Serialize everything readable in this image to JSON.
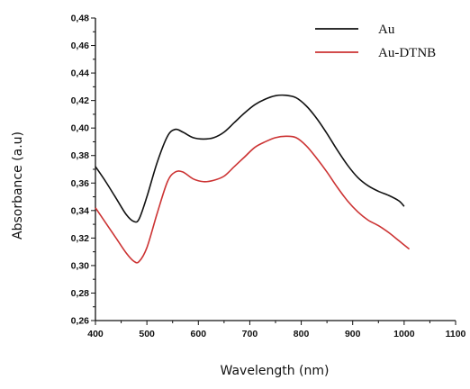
{
  "chart_data": {
    "type": "line",
    "title": "",
    "xlabel": "Wavelength (nm)",
    "ylabel": "Absorbance (a.u)",
    "xlim": [
      400,
      1100
    ],
    "ylim": [
      0.26,
      0.48
    ],
    "x_ticks": [
      400,
      500,
      600,
      700,
      800,
      900,
      1000,
      1100
    ],
    "x_tick_labels": [
      "400",
      "500",
      "600",
      "700",
      "800",
      "900",
      "1000",
      "1100"
    ],
    "y_ticks": [
      0.26,
      0.28,
      0.3,
      0.32,
      0.34,
      0.36,
      0.38,
      0.4,
      0.42,
      0.44,
      0.46,
      0.48
    ],
    "y_tick_labels": [
      "0,26",
      "0,28",
      "0,30",
      "0,32",
      "0,34",
      "0,36",
      "0,38",
      "0,40",
      "0,42",
      "0,44",
      "0,46",
      "0,48"
    ],
    "grid": false,
    "legend_position": "top-right",
    "series": [
      {
        "name": "Au",
        "color": "#111111",
        "points": [
          [
            400,
            0.372
          ],
          [
            420,
            0.361
          ],
          [
            440,
            0.349
          ],
          [
            460,
            0.337
          ],
          [
            475,
            0.332
          ],
          [
            485,
            0.334
          ],
          [
            500,
            0.35
          ],
          [
            520,
            0.375
          ],
          [
            540,
            0.394
          ],
          [
            555,
            0.399
          ],
          [
            570,
            0.397
          ],
          [
            590,
            0.393
          ],
          [
            610,
            0.392
          ],
          [
            630,
            0.393
          ],
          [
            650,
            0.397
          ],
          [
            670,
            0.404
          ],
          [
            690,
            0.411
          ],
          [
            710,
            0.417
          ],
          [
            730,
            0.421
          ],
          [
            750,
            0.4235
          ],
          [
            770,
            0.4238
          ],
          [
            790,
            0.422
          ],
          [
            810,
            0.416
          ],
          [
            830,
            0.407
          ],
          [
            850,
            0.396
          ],
          [
            870,
            0.384
          ],
          [
            890,
            0.373
          ],
          [
            910,
            0.364
          ],
          [
            930,
            0.358
          ],
          [
            950,
            0.354
          ],
          [
            970,
            0.351
          ],
          [
            990,
            0.347
          ],
          [
            1000,
            0.343
          ]
        ]
      },
      {
        "name": "Au-DTNB",
        "color": "#cc3333",
        "points": [
          [
            400,
            0.342
          ],
          [
            420,
            0.331
          ],
          [
            440,
            0.32
          ],
          [
            460,
            0.309
          ],
          [
            475,
            0.303
          ],
          [
            485,
            0.303
          ],
          [
            500,
            0.313
          ],
          [
            520,
            0.338
          ],
          [
            540,
            0.361
          ],
          [
            555,
            0.368
          ],
          [
            570,
            0.368
          ],
          [
            590,
            0.363
          ],
          [
            610,
            0.361
          ],
          [
            630,
            0.362
          ],
          [
            650,
            0.365
          ],
          [
            670,
            0.372
          ],
          [
            690,
            0.379
          ],
          [
            710,
            0.386
          ],
          [
            730,
            0.39
          ],
          [
            750,
            0.393
          ],
          [
            770,
            0.394
          ],
          [
            790,
            0.393
          ],
          [
            810,
            0.387
          ],
          [
            830,
            0.378
          ],
          [
            850,
            0.368
          ],
          [
            870,
            0.357
          ],
          [
            890,
            0.347
          ],
          [
            910,
            0.339
          ],
          [
            930,
            0.333
          ],
          [
            950,
            0.329
          ],
          [
            970,
            0.324
          ],
          [
            990,
            0.318
          ],
          [
            1010,
            0.312
          ]
        ]
      }
    ]
  }
}
